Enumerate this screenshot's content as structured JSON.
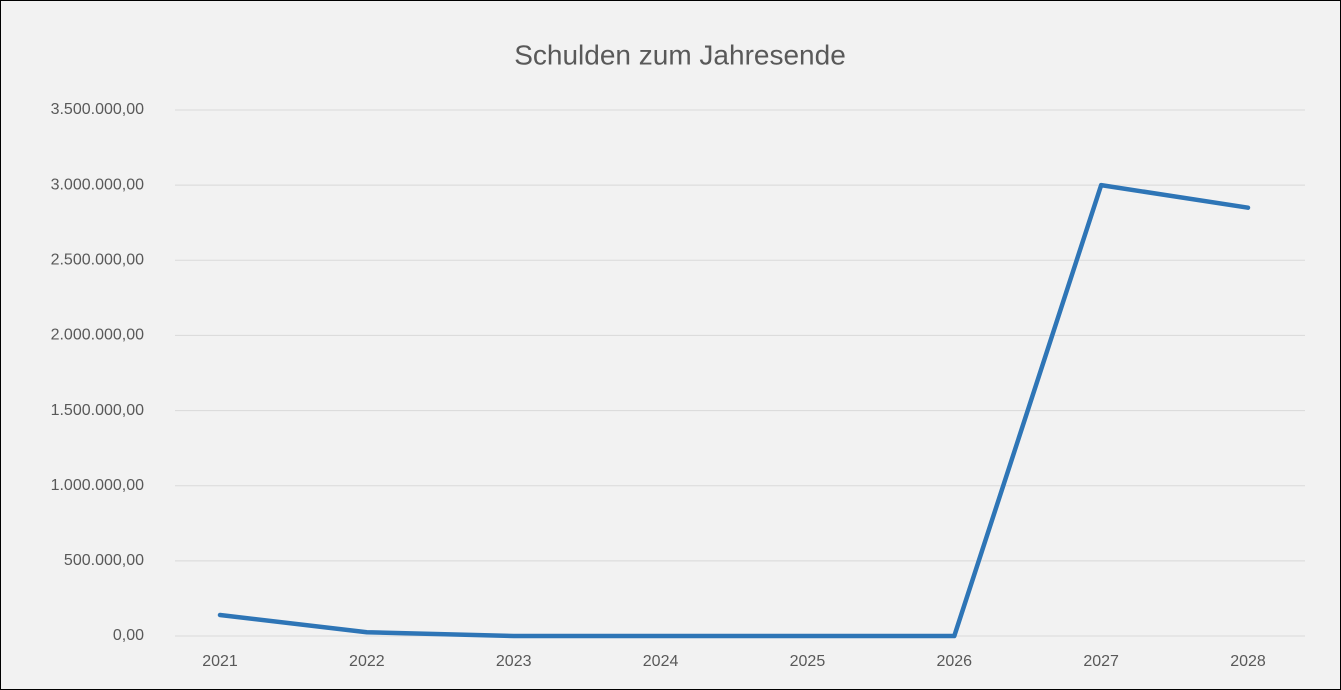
{
  "chart_data": {
    "type": "line",
    "title": "Schulden zum Jahresende",
    "categories": [
      "2021",
      "2022",
      "2023",
      "2024",
      "2025",
      "2026",
      "2027",
      "2028"
    ],
    "series": [
      {
        "name": "Schulden",
        "color": "#2e75b6",
        "values": [
          140000,
          25000,
          0,
          0,
          0,
          0,
          3000000,
          2850000
        ]
      }
    ],
    "ylim": [
      0,
      3500000
    ],
    "yticks": [
      {
        "value": 0,
        "label": "0,00"
      },
      {
        "value": 500000,
        "label": "500.000,00"
      },
      {
        "value": 1000000,
        "label": "1.000.000,00"
      },
      {
        "value": 1500000,
        "label": "1.500.000,00"
      },
      {
        "value": 2000000,
        "label": "2.000.000,00"
      },
      {
        "value": 2500000,
        "label": "2.500.000,00"
      },
      {
        "value": 3000000,
        "label": "3.000.000,00"
      },
      {
        "value": 3500000,
        "label": "3.500.000,00"
      }
    ],
    "grid": true
  }
}
